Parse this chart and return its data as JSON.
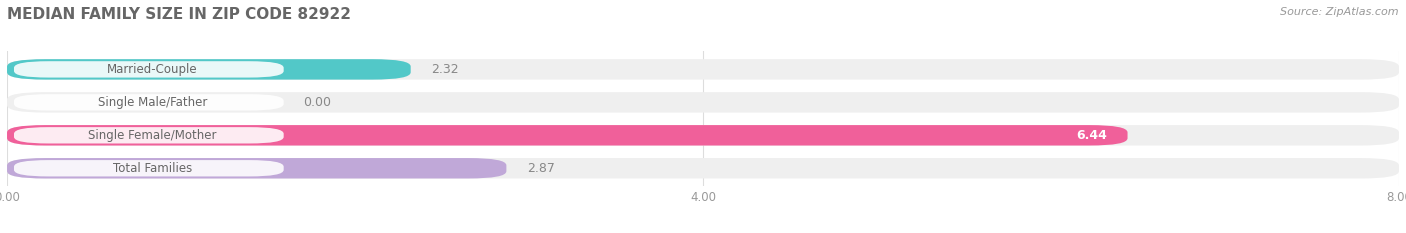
{
  "title": "MEDIAN FAMILY SIZE IN ZIP CODE 82922",
  "source": "Source: ZipAtlas.com",
  "categories": [
    "Married-Couple",
    "Single Male/Father",
    "Single Female/Mother",
    "Total Families"
  ],
  "values": [
    2.32,
    0.0,
    6.44,
    2.87
  ],
  "bar_colors": [
    "#52C8C8",
    "#AABCEE",
    "#F0609A",
    "#C0A8D8"
  ],
  "xlim": [
    0,
    8.0
  ],
  "xticks": [
    0.0,
    4.0,
    8.0
  ],
  "label_color": "#666666",
  "title_color": "#666666",
  "source_color": "#999999",
  "bg_bar_color": "#EFEFEF",
  "value_outside_color": "#888888",
  "background_color": "#FFFFFF",
  "figsize": [
    14.06,
    2.33
  ],
  "dpi": 100
}
